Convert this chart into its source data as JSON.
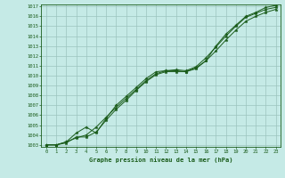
{
  "xlabel": "Graphe pression niveau de la mer (hPa)",
  "xlim": [
    -0.5,
    23.5
  ],
  "ylim": [
    1002.8,
    1017.2
  ],
  "yticks": [
    1003,
    1004,
    1005,
    1006,
    1007,
    1008,
    1009,
    1010,
    1011,
    1012,
    1013,
    1014,
    1015,
    1016,
    1017
  ],
  "xticks": [
    0,
    1,
    2,
    3,
    4,
    5,
    6,
    7,
    8,
    9,
    10,
    11,
    12,
    13,
    14,
    15,
    16,
    17,
    18,
    19,
    20,
    21,
    22,
    23
  ],
  "background_color": "#c5eae6",
  "grid_color": "#9cc4be",
  "line_color": "#1a5c1a",
  "hours": [
    0,
    1,
    2,
    3,
    4,
    5,
    6,
    7,
    8,
    9,
    10,
    11,
    12,
    13,
    14,
    15,
    16,
    17,
    18,
    19,
    20,
    21,
    22,
    23
  ],
  "line1": [
    1003.0,
    1003.0,
    1003.3,
    1003.7,
    1004.0,
    1004.8,
    1005.8,
    1006.8,
    1007.7,
    1008.6,
    1009.5,
    1010.2,
    1010.5,
    1010.6,
    1010.5,
    1010.9,
    1011.8,
    1012.9,
    1014.0,
    1015.0,
    1015.9,
    1016.3,
    1016.7,
    1016.9
  ],
  "line2": [
    1003.0,
    1003.0,
    1003.2,
    1003.8,
    1003.8,
    1004.3,
    1005.5,
    1006.6,
    1007.5,
    1008.5,
    1009.4,
    1010.1,
    1010.4,
    1010.4,
    1010.4,
    1010.7,
    1011.5,
    1012.5,
    1013.6,
    1014.6,
    1015.5,
    1016.0,
    1016.4,
    1016.7
  ],
  "line3": [
    1003.0,
    1003.0,
    1003.3,
    1004.2,
    1004.8,
    1004.2,
    1005.7,
    1007.0,
    1007.9,
    1008.8,
    1009.7,
    1010.4,
    1010.5,
    1010.5,
    1010.4,
    1010.8,
    1011.5,
    1013.0,
    1014.2,
    1015.1,
    1016.0,
    1016.4,
    1016.9,
    1017.1
  ]
}
